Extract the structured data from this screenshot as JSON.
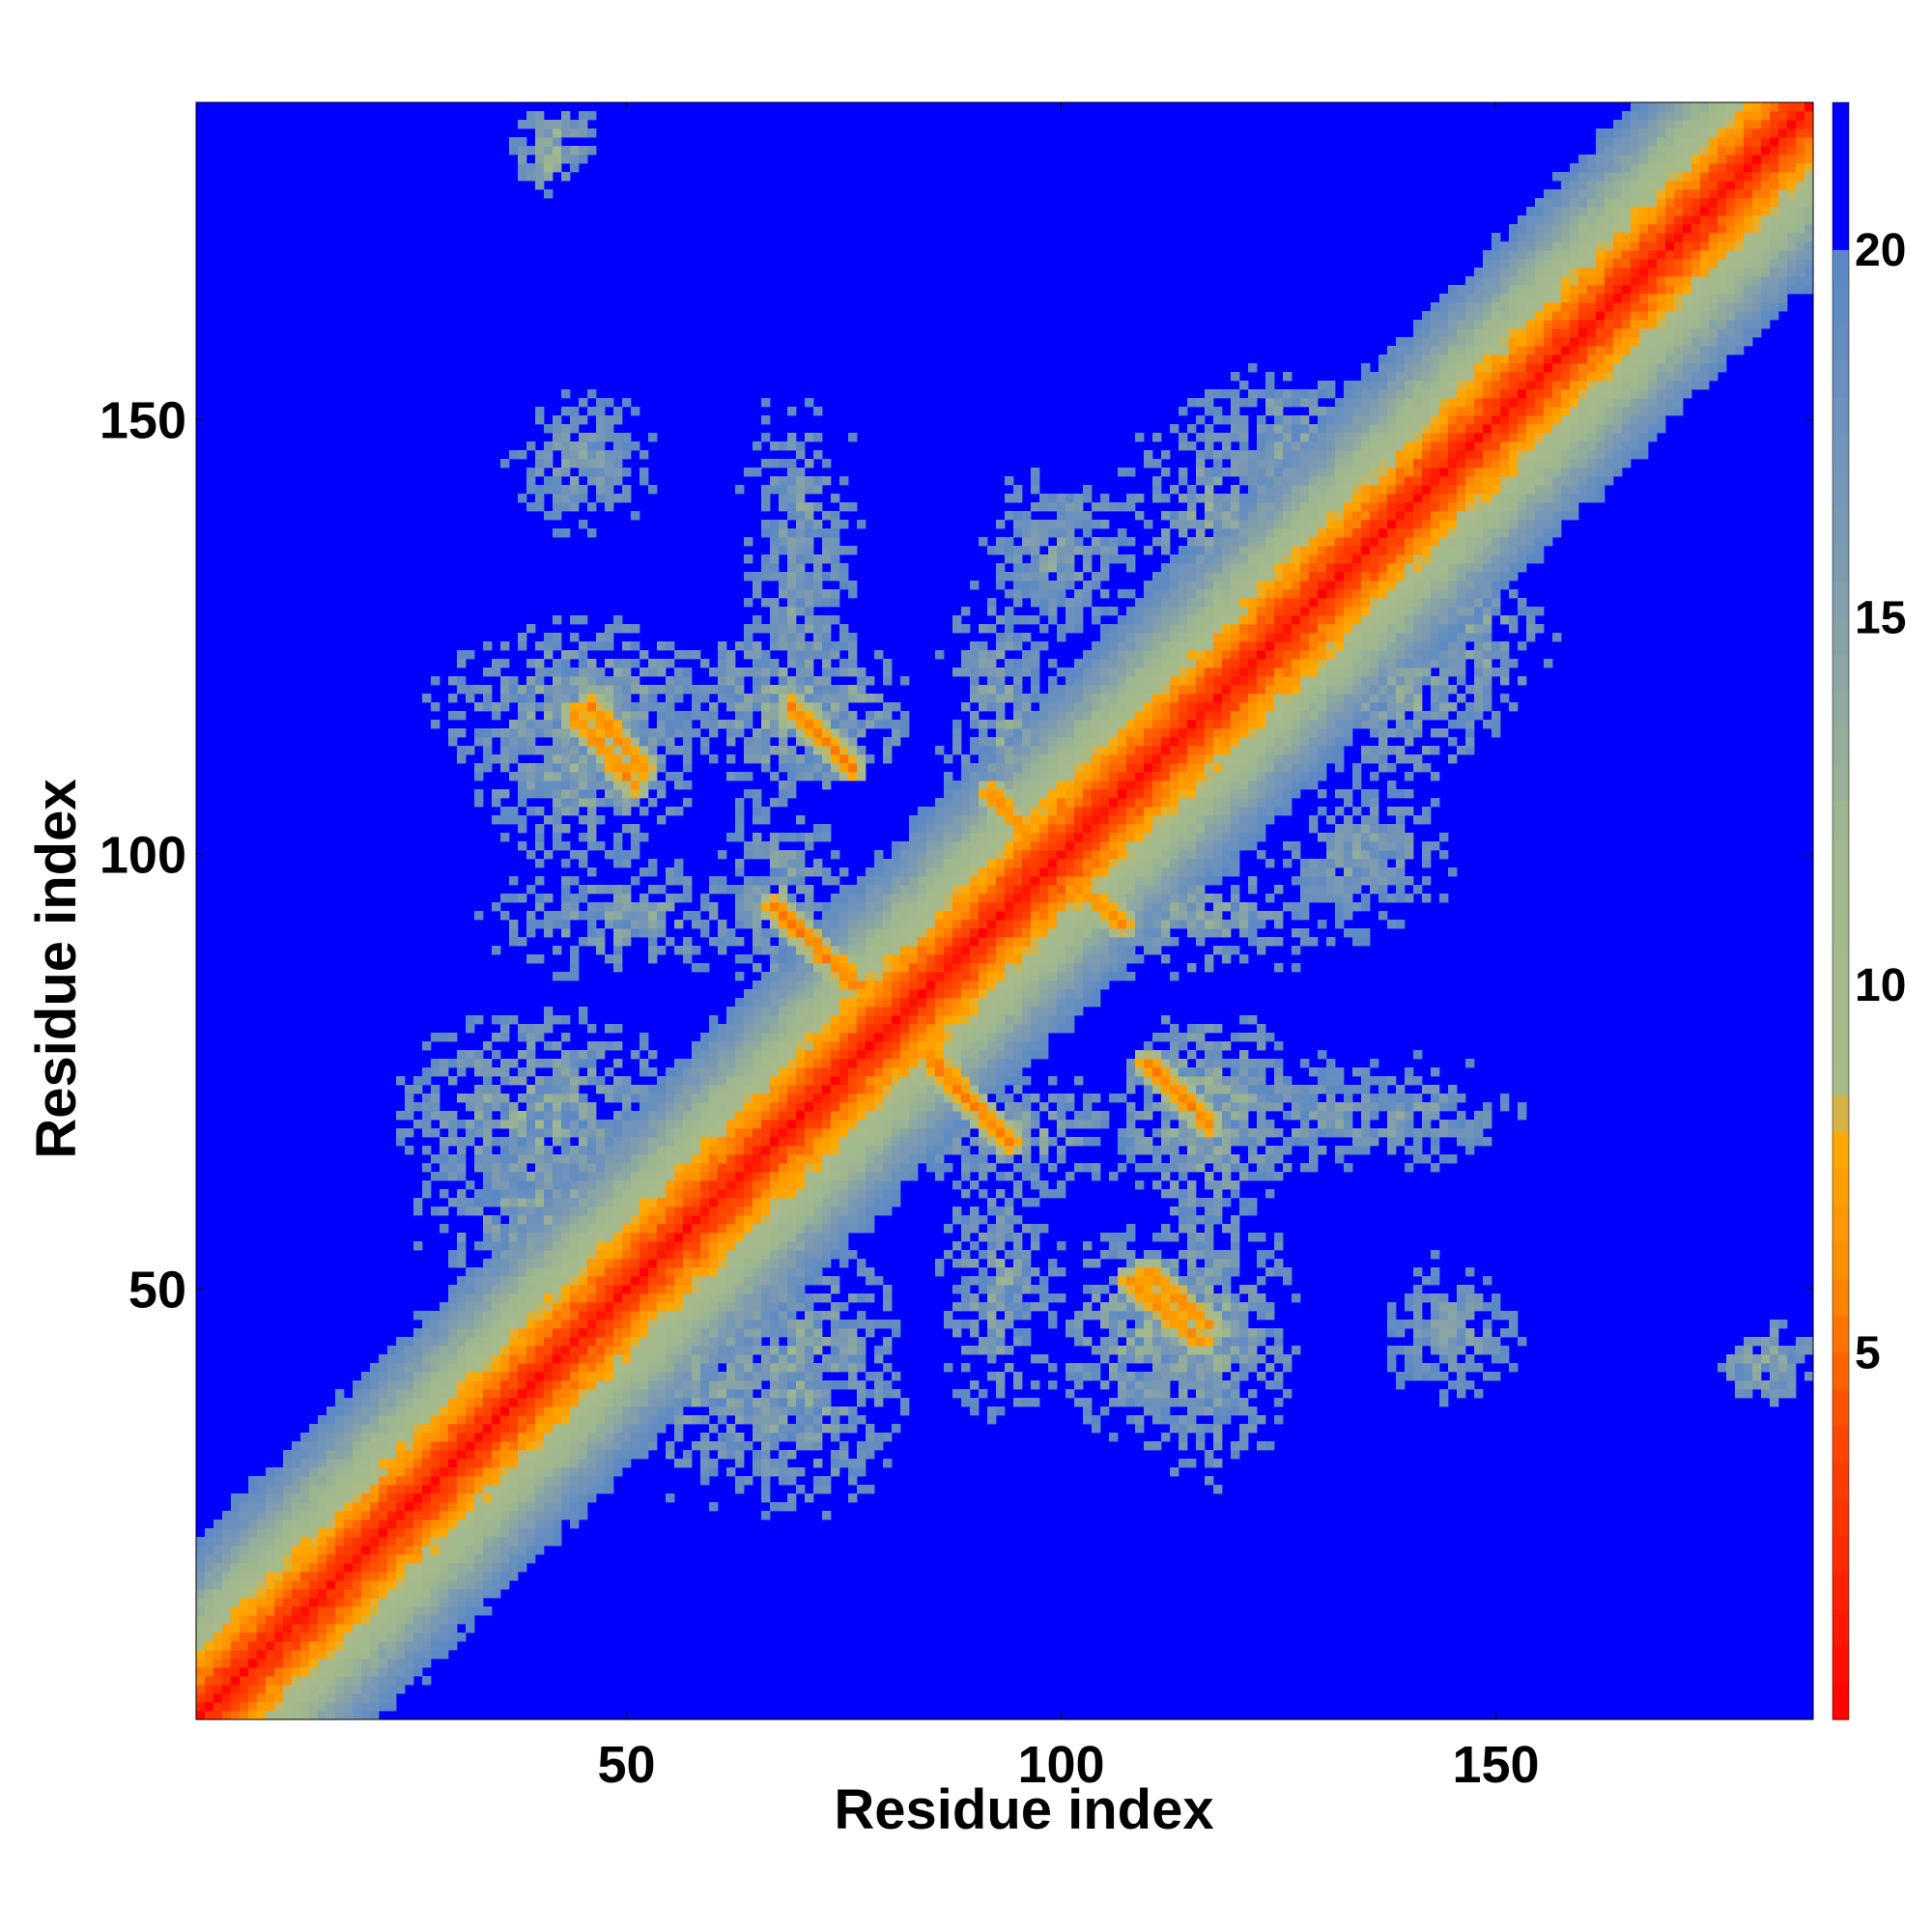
{
  "chart_data": {
    "type": "heatmap",
    "title": "",
    "xlabel": "Residue index",
    "ylabel": "Residue index",
    "n_residues": 186,
    "xlim": [
      1,
      186
    ],
    "ylim": [
      1,
      186
    ],
    "x_ticks": [
      50,
      100,
      150
    ],
    "y_ticks": [
      50,
      100,
      150
    ],
    "colorbar": {
      "range": [
        0,
        22
      ],
      "ticks": [
        5,
        10,
        15,
        20
      ],
      "stops": [
        {
          "value": 0,
          "color": "#ff0000"
        },
        {
          "value": 4,
          "color": "#ff4a00"
        },
        {
          "value": 6,
          "color": "#ff8c00"
        },
        {
          "value": 8,
          "color": "#ffaa00"
        },
        {
          "value": 8.5,
          "color": "#a8ba8a"
        },
        {
          "value": 12,
          "color": "#9fb78f"
        },
        {
          "value": 16,
          "color": "#7b99b2"
        },
        {
          "value": 20,
          "color": "#5a88c6"
        },
        {
          "value": 20.1,
          "color": "#0000ff"
        },
        {
          "value": 22,
          "color": "#0000ff"
        }
      ],
      "cutoff": 20,
      "background_color": "#0000ff"
    },
    "diagonal": {
      "distance_scale": 0.9
    },
    "contact_blobs": [
      {
        "x": 42,
        "y": 182,
        "sx": 4,
        "sy": 5,
        "d": 13
      },
      {
        "x": 45,
        "y": 145,
        "sx": 8,
        "sy": 7,
        "d": 15
      },
      {
        "x": 70,
        "y": 140,
        "sx": 6,
        "sy": 12,
        "d": 15
      },
      {
        "x": 99,
        "y": 133,
        "sx": 7,
        "sy": 7,
        "d": 15
      },
      {
        "x": 125,
        "y": 148,
        "sx": 9,
        "sy": 7,
        "d": 14
      },
      {
        "x": 160,
        "y": 162,
        "sx": 8,
        "sy": 9,
        "d": 13
      },
      {
        "x": 45,
        "y": 117,
        "sx": 14,
        "sy": 8,
        "d": 13
      },
      {
        "x": 70,
        "y": 117,
        "sx": 10,
        "sy": 8,
        "d": 12
      },
      {
        "x": 140,
        "y": 118,
        "sx": 10,
        "sy": 9,
        "d": 14
      },
      {
        "x": 135,
        "y": 100,
        "sx": 9,
        "sy": 9,
        "d": 15
      },
      {
        "x": 50,
        "y": 93,
        "sx": 14,
        "sy": 6,
        "d": 14
      },
      {
        "x": 115,
        "y": 93,
        "sx": 15,
        "sy": 6,
        "d": 14
      },
      {
        "x": 40,
        "y": 70,
        "sx": 13,
        "sy": 10,
        "d": 13
      },
      {
        "x": 95,
        "y": 68,
        "sx": 12,
        "sy": 6,
        "d": 14
      },
      {
        "x": 130,
        "y": 70,
        "sx": 14,
        "sy": 6,
        "d": 15
      },
      {
        "x": 60,
        "y": 40,
        "sx": 10,
        "sy": 12,
        "d": 14
      },
      {
        "x": 110,
        "y": 45,
        "sx": 9,
        "sy": 10,
        "d": 13
      },
      {
        "x": 145,
        "y": 45,
        "sx": 7,
        "sy": 7,
        "d": 15
      },
      {
        "x": 180,
        "y": 41,
        "sx": 3,
        "sy": 3,
        "d": 12
      },
      {
        "x": 10,
        "y": 15,
        "sx": 7,
        "sy": 9,
        "d": 14
      },
      {
        "x": 20,
        "y": 10,
        "sx": 8,
        "sy": 6,
        "d": 15
      },
      {
        "x": 95,
        "y": 105,
        "sx": 6,
        "sy": 6,
        "d": 13
      }
    ],
    "strong_contacts": [
      {
        "x1": 46,
        "y1": 117,
        "x2": 52,
        "y2": 110,
        "d": 6
      },
      {
        "x1": 69,
        "y1": 117,
        "x2": 76,
        "y2": 110,
        "d": 6
      },
      {
        "x1": 67,
        "y1": 94,
        "x2": 77,
        "y2": 85,
        "d": 6
      },
      {
        "x1": 85,
        "y1": 76,
        "x2": 94,
        "y2": 67,
        "d": 6
      },
      {
        "x1": 110,
        "y1": 76,
        "x2": 116,
        "y2": 70,
        "d": 6
      },
      {
        "x1": 108,
        "y1": 51,
        "x2": 116,
        "y2": 44,
        "d": 6
      },
      {
        "x1": 92,
        "y1": 107,
        "x2": 97,
        "y2": 101,
        "d": 6
      },
      {
        "x1": 100,
        "y1": 106,
        "x2": 105,
        "y2": 100,
        "d": 6
      }
    ]
  }
}
